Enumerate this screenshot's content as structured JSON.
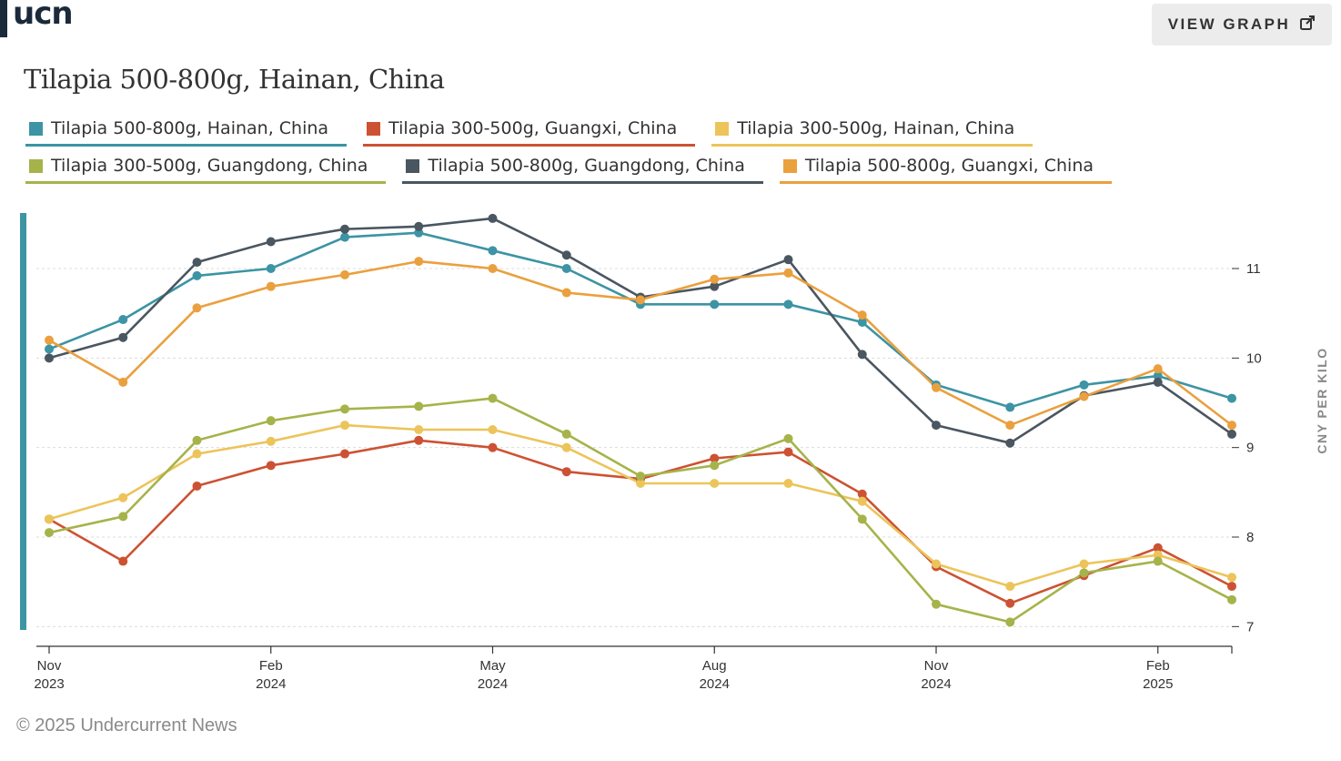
{
  "logo": {
    "text": "ucn"
  },
  "button": {
    "label": "VIEW GRAPH",
    "icon": "external-link-icon"
  },
  "footer": {
    "text": "© 2025 Undercurrent News"
  },
  "chart_data": {
    "type": "line",
    "title": "Tilapia 500-800g, Hainan, China",
    "ylabel": "CNY PER KILO",
    "xlabel": "",
    "ylim": [
      6.8,
      11.6
    ],
    "yticks": [
      7,
      8,
      9,
      10,
      11
    ],
    "grid": true,
    "legend_position": "top",
    "x_ticks": [
      {
        "month": "Nov",
        "year": "2023",
        "index": 0
      },
      {
        "month": "Feb",
        "year": "2024",
        "index": 3
      },
      {
        "month": "May",
        "year": "2024",
        "index": 6
      },
      {
        "month": "Aug",
        "year": "2024",
        "index": 9
      },
      {
        "month": "Nov",
        "year": "2024",
        "index": 12
      },
      {
        "month": "Feb",
        "year": "2025",
        "index": 15
      }
    ],
    "x": [
      "Nov 2023",
      "Dec 2023",
      "Jan 2024",
      "Feb 2024",
      "Mar 2024",
      "Apr 2024",
      "May 2024",
      "Jun 2024",
      "Jul 2024",
      "Aug 2024",
      "Sep 2024",
      "Oct 2024",
      "Nov 2024",
      "Dec 2024",
      "Jan 2025",
      "Feb 2025",
      "Mar 2025"
    ],
    "series": [
      {
        "name": "Tilapia 500-800g, Hainan, China",
        "color": "#3c94a4",
        "values": [
          10.1,
          10.43,
          10.92,
          11.0,
          11.35,
          11.4,
          11.2,
          11.0,
          10.6,
          10.6,
          10.6,
          10.4,
          9.7,
          9.45,
          9.7,
          9.8,
          9.55
        ]
      },
      {
        "name": "Tilapia 300-500g, Guangxi, China",
        "color": "#cc5233",
        "values": [
          8.2,
          7.73,
          8.57,
          8.8,
          8.93,
          9.08,
          9.0,
          8.73,
          8.65,
          8.88,
          8.95,
          8.48,
          7.67,
          7.26,
          7.57,
          7.88,
          7.45
        ]
      },
      {
        "name": "Tilapia 300-500g, Hainan, China",
        "color": "#ecc45a",
        "values": [
          8.2,
          8.44,
          8.93,
          9.07,
          9.25,
          9.2,
          9.2,
          9.0,
          8.6,
          8.6,
          8.6,
          8.4,
          7.7,
          7.45,
          7.7,
          7.8,
          7.55
        ]
      },
      {
        "name": "Tilapia 300-500g, Guangdong, China",
        "color": "#a6b34a",
        "values": [
          8.05,
          8.23,
          9.08,
          9.3,
          9.43,
          9.46,
          9.55,
          9.15,
          8.68,
          8.8,
          9.1,
          8.2,
          7.25,
          7.05,
          7.6,
          7.73,
          7.3
        ]
      },
      {
        "name": "Tilapia 500-800g, Guangdong, China",
        "color": "#4a5660",
        "values": [
          10.0,
          10.23,
          11.07,
          11.3,
          11.44,
          11.47,
          11.56,
          11.15,
          10.68,
          10.8,
          11.1,
          10.04,
          9.25,
          9.05,
          9.58,
          9.73,
          9.15
        ]
      },
      {
        "name": "Tilapia 500-800g, Guangxi, China",
        "color": "#eaa03e",
        "values": [
          10.2,
          9.73,
          10.56,
          10.8,
          10.93,
          11.08,
          11.0,
          10.73,
          10.65,
          10.88,
          10.95,
          10.48,
          9.67,
          9.25,
          9.57,
          9.88,
          9.25
        ]
      }
    ]
  }
}
